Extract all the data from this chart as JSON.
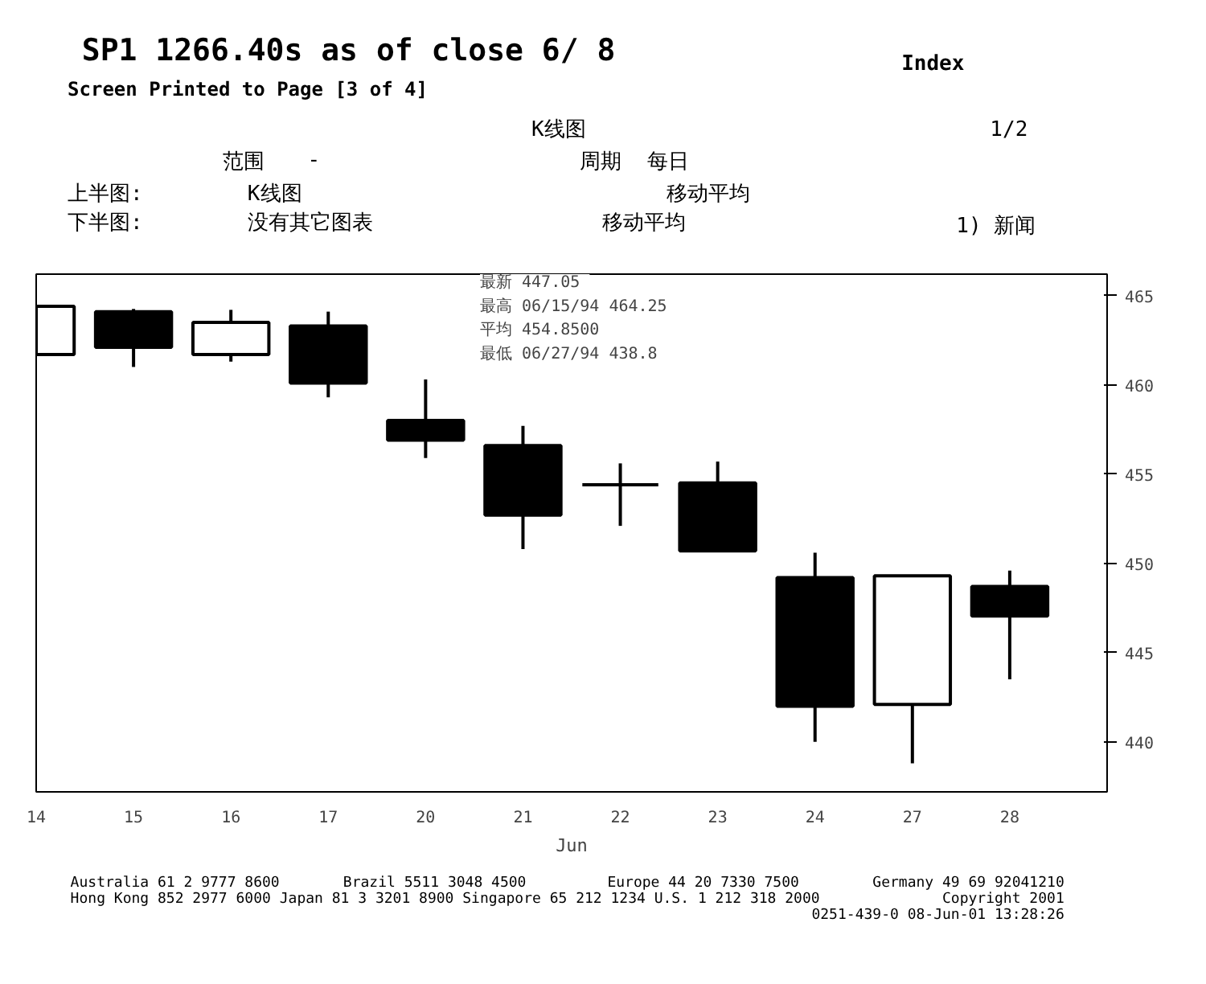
{
  "chart_data": {
    "type": "candlestick",
    "title": "SP1    1266.40s as of close  6/ 8",
    "subtitle": "Screen Printed to Page [3 of 4]",
    "categories": [
      "14",
      "15",
      "16",
      "17",
      "20",
      "21",
      "22",
      "23",
      "24",
      "27",
      "28"
    ],
    "ohlc": [
      [
        461.7,
        464.4,
        461.7,
        464.4
      ],
      [
        464.1,
        464.25,
        461.0,
        462.1
      ],
      [
        461.7,
        464.2,
        461.3,
        463.5
      ],
      [
        463.3,
        464.1,
        459.3,
        460.1
      ],
      [
        458.0,
        460.3,
        455.9,
        456.9
      ],
      [
        456.6,
        457.7,
        450.8,
        452.7
      ],
      [
        454.4,
        455.6,
        452.1,
        454.4
      ],
      [
        454.5,
        455.7,
        450.7,
        450.7
      ],
      [
        449.2,
        450.6,
        440.0,
        442.0
      ],
      [
        442.1,
        449.3,
        438.8,
        449.3
      ],
      [
        448.7,
        449.6,
        443.5,
        447.05
      ]
    ],
    "xlabel": "Jun",
    "ylim": [
      437.2,
      466.2
    ],
    "yticks": [
      440,
      445,
      450,
      455,
      460,
      465
    ],
    "annotations": [
      "Index",
      "K线图",
      "1/2",
      "范围",
      "-",
      "周期",
      "每日",
      "上半图:",
      "K线图",
      "移动平均",
      "下半图:",
      "没有其它图表",
      "移动平均",
      "1) 新闻",
      "最新  447.05",
      "最高  06/15/94 464.25",
      "平均 454.8500",
      "最低  06/27/94 438.8",
      "Australia 61 2 9777 8600",
      "Brazil 5511 3048 4500",
      "Europe 44 20 7330 7500",
      "Germany 49 69 92041210",
      "Hong Kong 852 2977 6000   Japan 81 3 3201 8900   Singapore 65 212 1234   U.S. 1 212 318 2000",
      "Copyright 2001",
      "0251-439-0 08-Jun-01 13:28:26"
    ]
  }
}
